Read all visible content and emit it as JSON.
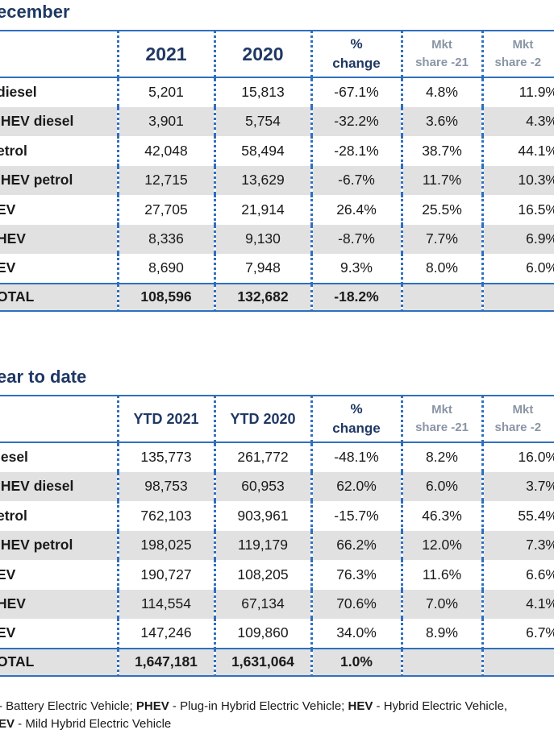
{
  "december": {
    "title": "ecember",
    "headers": {
      "y1": "2021",
      "y2": "2020",
      "pct_line1": "%",
      "pct_line2": "change",
      "mkt1_line1": "Mkt",
      "mkt1_line2": "share -21",
      "mkt2_line1": "Mkt",
      "mkt2_line2": "share -2"
    },
    "rows": [
      {
        "label": "diesel",
        "v1": "5,201",
        "v2": "15,813",
        "pct": "-67.1%",
        "s1": "4.8%",
        "s2": "11.9%"
      },
      {
        "label": "IHEV diesel",
        "v1": "3,901",
        "v2": "5,754",
        "pct": "-32.2%",
        "s1": "3.6%",
        "s2": "4.3%"
      },
      {
        "label": "etrol",
        "v1": "42,048",
        "v2": "58,494",
        "pct": "-28.1%",
        "s1": "38.7%",
        "s2": "44.1%"
      },
      {
        "label": "IHEV petrol",
        "v1": "12,715",
        "v2": "13,629",
        "pct": "-6.7%",
        "s1": "11.7%",
        "s2": "10.3%"
      },
      {
        "label": "EV",
        "v1": "27,705",
        "v2": "21,914",
        "pct": "26.4%",
        "s1": "25.5%",
        "s2": "16.5%"
      },
      {
        "label": "HEV",
        "v1": "8,336",
        "v2": "9,130",
        "pct": "-8.7%",
        "s1": "7.7%",
        "s2": "6.9%"
      },
      {
        "label": "EV",
        "v1": "8,690",
        "v2": "7,948",
        "pct": "9.3%",
        "s1": "8.0%",
        "s2": "6.0%"
      }
    ],
    "total": {
      "label": "OTAL",
      "v1": "108,596",
      "v2": "132,682",
      "pct": "-18.2%"
    }
  },
  "ytd": {
    "title": "ear to date",
    "headers": {
      "y1": "YTD 2021",
      "y2": "YTD 2020",
      "pct_line1": "%",
      "pct_line2": "change",
      "mkt1_line1": "Mkt",
      "mkt1_line2": "share -21",
      "mkt2_line1": "Mkt",
      "mkt2_line2": "share -2"
    },
    "rows": [
      {
        "label": "iesel",
        "v1": "135,773",
        "v2": "261,772",
        "pct": "-48.1%",
        "s1": "8.2%",
        "s2": "16.0%"
      },
      {
        "label": "IHEV diesel",
        "v1": "98,753",
        "v2": "60,953",
        "pct": "62.0%",
        "s1": "6.0%",
        "s2": "3.7%"
      },
      {
        "label": "etrol",
        "v1": "762,103",
        "v2": "903,961",
        "pct": "-15.7%",
        "s1": "46.3%",
        "s2": "55.4%"
      },
      {
        "label": "IHEV petrol",
        "v1": "198,025",
        "v2": "119,179",
        "pct": "66.2%",
        "s1": "12.0%",
        "s2": "7.3%"
      },
      {
        "label": "EV",
        "v1": "190,727",
        "v2": "108,205",
        "pct": "76.3%",
        "s1": "11.6%",
        "s2": "6.6%"
      },
      {
        "label": "HEV",
        "v1": "114,554",
        "v2": "67,134",
        "pct": "70.6%",
        "s1": "7.0%",
        "s2": "4.1%"
      },
      {
        "label": "EV",
        "v1": "147,246",
        "v2": "109,860",
        "pct": "34.0%",
        "s1": "8.9%",
        "s2": "6.7%"
      }
    ],
    "total": {
      "label": "OTAL",
      "v1": "1,647,181",
      "v2": "1,631,064",
      "pct": "1.0%"
    }
  },
  "footnote": {
    "line1_a": "- Battery Electric Vehicle; ",
    "line1_b": "PHEV",
    "line1_c": " - Plug-in Hybrid Electric Vehicle; ",
    "line1_d": "HEV",
    "line1_e": " - Hybrid Electric Vehicle,",
    "line2_a": "EV",
    "line2_b": " - Mild Hybrid Electric Vehicle"
  }
}
